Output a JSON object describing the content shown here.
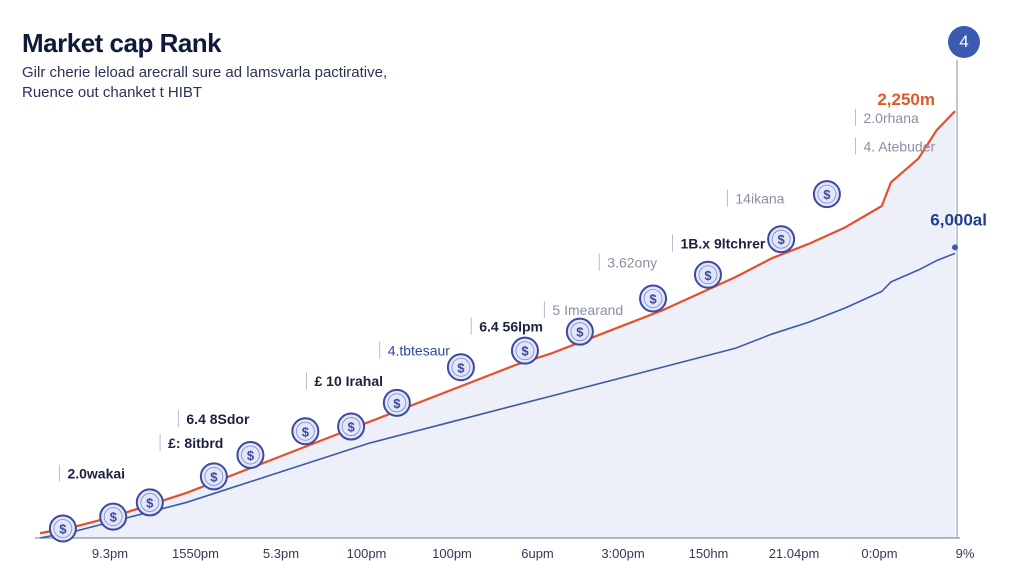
{
  "header": {
    "title": "Market cap Rank",
    "subtitle_line1": "Gilr cherie leload arecrall sure ad lamsvarla pactirative,",
    "subtitle_line2": "Ruence out chanket t HIBT",
    "badge": "4"
  },
  "colors": {
    "red_series": "#e0522e",
    "blue_series": "#3d5aa8",
    "area_fill": "#dfe4f3",
    "coin_fill": "#e3e6f8",
    "coin_stroke": "#3b4aa0",
    "end_label_red": "#e05a2a",
    "end_label_blue": "#1f3f8f",
    "annotation_gray": "#8a8f9e"
  },
  "chart_data": {
    "type": "line",
    "title": "Market cap Rank",
    "x_ticks": [
      "9.3pm",
      "1550pm",
      "5.3pm",
      "100pm",
      "100pm",
      "6upm",
      "3:00pm",
      "150hm",
      "21.04pm",
      "0:0pm",
      "9%"
    ],
    "x": [
      0,
      0.4,
      0.8,
      1.2,
      1.6,
      2.0,
      2.4,
      2.8,
      3.2,
      3.6,
      4.0,
      4.4,
      4.8,
      5.2,
      5.6,
      6.0,
      6.4,
      6.8,
      7.2,
      7.6,
      8.0,
      8.4,
      8.8,
      9.2,
      9.3,
      9.6,
      9.8,
      10.0
    ],
    "series": [
      {
        "values": [
          2,
          5,
          9,
          14,
          19,
          25,
          31,
          37,
          43,
          49,
          55,
          61,
          67,
          73,
          78,
          84,
          90,
          96,
          103,
          110,
          118,
          124,
          131,
          140,
          150,
          160,
          172,
          180
        ],
        "color": "#e0522e"
      },
      {
        "values": [
          0,
          3,
          7,
          11,
          15,
          20,
          25,
          30,
          35,
          40,
          44,
          48,
          52,
          56,
          60,
          64,
          68,
          72,
          76,
          80,
          86,
          91,
          97,
          104,
          108,
          113,
          117,
          120
        ],
        "color": "#3d5aa8"
      }
    ],
    "end_labels": {
      "red": "2,250m",
      "blue": "6,000al"
    },
    "annotations": [
      {
        "text": "2.0wakai",
        "x": 0.3,
        "y": 25,
        "style": "dark"
      },
      {
        "text": "£: 8itbrd",
        "x": 1.4,
        "y": 38,
        "style": "dark"
      },
      {
        "text": "6.4 8Sdor",
        "x": 1.6,
        "y": 48,
        "style": "dark"
      },
      {
        "text": "£ 10 Irahal",
        "x": 3.0,
        "y": 64,
        "style": "dark"
      },
      {
        "text": "4.tbtesaur",
        "x": 3.8,
        "y": 77,
        "style": "blue"
      },
      {
        "text": "6.4 56lpm",
        "x": 4.8,
        "y": 87,
        "style": "dark"
      },
      {
        "text": "5 Imearand",
        "x": 5.6,
        "y": 94,
        "style": "gray"
      },
      {
        "text": "3.62ony",
        "x": 6.2,
        "y": 114,
        "style": "gray"
      },
      {
        "text": "1B.x 9ltchrer",
        "x": 7.0,
        "y": 122,
        "style": "dark"
      },
      {
        "text": "14ikana",
        "x": 7.6,
        "y": 141,
        "style": "gray"
      },
      {
        "text": "4. Atebuder",
        "x": 9.0,
        "y": 163,
        "style": "gray"
      },
      {
        "text": "2.0rhana",
        "x": 9.0,
        "y": 175,
        "style": "gray"
      }
    ],
    "markers": [
      {
        "x": 0.25,
        "y": 4,
        "symbol": "$"
      },
      {
        "x": 0.8,
        "y": 9,
        "symbol": "$"
      },
      {
        "x": 1.2,
        "y": 15,
        "symbol": "$"
      },
      {
        "x": 1.9,
        "y": 26,
        "symbol": "$"
      },
      {
        "x": 2.3,
        "y": 35,
        "symbol": "$"
      },
      {
        "x": 2.9,
        "y": 45,
        "symbol": "$"
      },
      {
        "x": 3.4,
        "y": 47,
        "symbol": "$"
      },
      {
        "x": 3.9,
        "y": 57,
        "symbol": "$"
      },
      {
        "x": 4.6,
        "y": 72,
        "symbol": "$"
      },
      {
        "x": 5.3,
        "y": 79,
        "symbol": "$"
      },
      {
        "x": 5.9,
        "y": 87,
        "symbol": "$"
      },
      {
        "x": 6.7,
        "y": 101,
        "symbol": "$"
      },
      {
        "x": 7.3,
        "y": 111,
        "symbol": "$"
      },
      {
        "x": 8.1,
        "y": 126,
        "symbol": "$"
      },
      {
        "x": 8.6,
        "y": 145,
        "symbol": "$"
      }
    ],
    "xlim": [
      0,
      10
    ],
    "ylim": [
      0,
      210
    ],
    "grid": false,
    "legend": "none"
  }
}
